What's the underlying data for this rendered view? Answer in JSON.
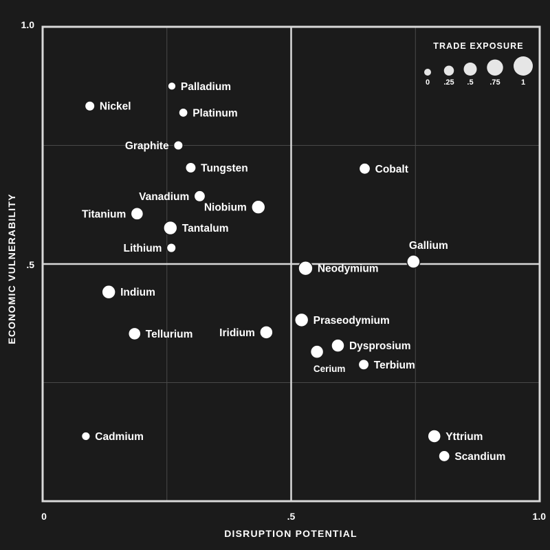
{
  "chart_data": {
    "type": "scatter",
    "title": "",
    "xlabel": "DISRUPTION POTENTIAL",
    "ylabel": "ECONOMIC VULNERABILITY",
    "xlim": [
      0,
      1
    ],
    "ylim": [
      0,
      1
    ],
    "x_ticks": [
      "0",
      ".5",
      "1.0"
    ],
    "y_ticks": [
      "1.0",
      ".5"
    ],
    "grid": true,
    "quadrant_lines": [
      0.5,
      0.5
    ],
    "size_legend": {
      "title": "TRADE EXPOSURE",
      "values": [
        0,
        0.25,
        0.5,
        0.75,
        1
      ],
      "labels": [
        "0",
        ".25",
        ".5",
        ".75",
        "1"
      ],
      "placement": "top-right"
    },
    "points": [
      {
        "name": "Palladium",
        "x": 0.26,
        "y": 0.875,
        "size": 0.1,
        "label_side": "right"
      },
      {
        "name": "Nickel",
        "x": 0.095,
        "y": 0.833,
        "size": 0.25,
        "label_side": "right"
      },
      {
        "name": "Platinum",
        "x": 0.283,
        "y": 0.819,
        "size": 0.18,
        "label_side": "right"
      },
      {
        "name": "Graphite",
        "x": 0.273,
        "y": 0.75,
        "size": 0.2,
        "label_side": "left"
      },
      {
        "name": "Tungsten",
        "x": 0.298,
        "y": 0.703,
        "size": 0.3,
        "label_side": "right"
      },
      {
        "name": "Cobalt",
        "x": 0.648,
        "y": 0.701,
        "size": 0.35,
        "label_side": "right"
      },
      {
        "name": "Vanadium",
        "x": 0.316,
        "y": 0.643,
        "size": 0.35,
        "label_side": "left"
      },
      {
        "name": "Niobium",
        "x": 0.434,
        "y": 0.62,
        "size": 0.55,
        "label_side": "left"
      },
      {
        "name": "Titanium",
        "x": 0.19,
        "y": 0.606,
        "size": 0.45,
        "label_side": "left"
      },
      {
        "name": "Tantalum",
        "x": 0.257,
        "y": 0.576,
        "size": 0.55,
        "label_side": "right"
      },
      {
        "name": "Lithium",
        "x": 0.259,
        "y": 0.534,
        "size": 0.2,
        "label_side": "left"
      },
      {
        "name": "Gallium",
        "x": 0.746,
        "y": 0.505,
        "size": 0.5,
        "label_side": "above"
      },
      {
        "name": "Neodymium",
        "x": 0.529,
        "y": 0.491,
        "size": 0.6,
        "label_side": "right"
      },
      {
        "name": "Indium",
        "x": 0.133,
        "y": 0.441,
        "size": 0.55,
        "label_side": "right"
      },
      {
        "name": "Praseodymium",
        "x": 0.521,
        "y": 0.382,
        "size": 0.55,
        "label_side": "right"
      },
      {
        "name": "Iridium",
        "x": 0.45,
        "y": 0.356,
        "size": 0.5,
        "label_side": "left"
      },
      {
        "name": "Tellurium",
        "x": 0.185,
        "y": 0.353,
        "size": 0.45,
        "label_side": "right"
      },
      {
        "name": "Dysprosium",
        "x": 0.594,
        "y": 0.328,
        "size": 0.5,
        "label_side": "right"
      },
      {
        "name": "Cerium",
        "x": 0.552,
        "y": 0.315,
        "size": 0.5,
        "label_side": "below"
      },
      {
        "name": "Terbium",
        "x": 0.646,
        "y": 0.288,
        "size": 0.3,
        "label_side": "right"
      },
      {
        "name": "Cadmium",
        "x": 0.087,
        "y": 0.137,
        "size": 0.15,
        "label_side": "right"
      },
      {
        "name": "Yttrium",
        "x": 0.788,
        "y": 0.137,
        "size": 0.5,
        "label_side": "right"
      },
      {
        "name": "Scandium",
        "x": 0.808,
        "y": 0.095,
        "size": 0.35,
        "label_side": "right"
      }
    ]
  }
}
